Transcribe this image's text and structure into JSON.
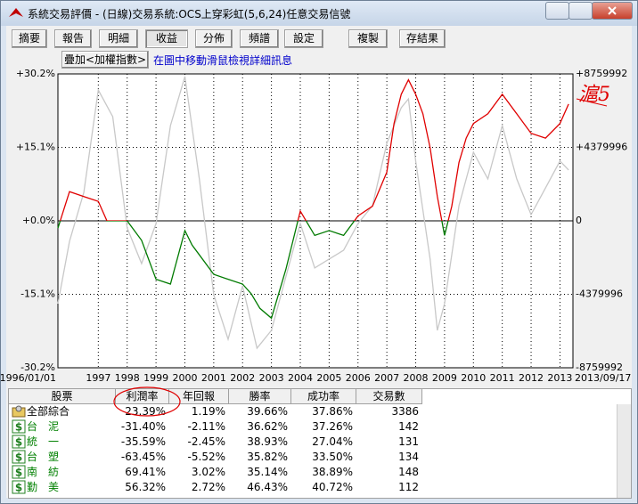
{
  "window": {
    "title": "系統交易評價 - (日線)交易系統:OCS上穿彩虹(5,6,24)任意交易信號"
  },
  "toolbar": {
    "buttons": [
      "摘要",
      "報告",
      "明細",
      "收益",
      "分佈",
      "頻譜",
      "設定",
      "複製",
      "存結果"
    ],
    "overlay_button": "疊加<加權指數>",
    "hint": "在圖中移動滑鼠檢視詳細訊息"
  },
  "chart_data": {
    "type": "line",
    "annotation": "滬5",
    "x_start_label": "1996/01/01",
    "x_end_label": "2013/09/17",
    "xlim": [
      1995.6,
      2013.45
    ],
    "xticks": [
      1997,
      1998,
      1999,
      2000,
      2001,
      2002,
      2003,
      2004,
      2005,
      2006,
      2007,
      2008,
      2009,
      2010,
      2011,
      2012,
      2013
    ],
    "ylim": [
      -30.2,
      30.2
    ],
    "yticks": [
      {
        "value": 30.2,
        "label": "+30.2%"
      },
      {
        "value": 15.1,
        "label": "+15.1%"
      },
      {
        "value": 0,
        "label": "+0.0%"
      },
      {
        "value": -15.1,
        "label": "-15.1%"
      },
      {
        "value": -30.2,
        "label": "-30.2%"
      }
    ],
    "y2lim": [
      -8759992,
      8759992
    ],
    "y2ticks": [
      {
        "value": 8759992,
        "label": "+8759992"
      },
      {
        "value": 4379996,
        "label": "+4379996"
      },
      0,
      -4379996,
      -8759992
    ],
    "grid": true,
    "series": [
      {
        "axis": "y2",
        "color": "#c8c8c8",
        "x": [
          1995.6,
          1996,
          1996.5,
          1997,
          1997.5,
          1998,
          1998.5,
          1999,
          1999.5,
          2000,
          2000.5,
          2001,
          2001.5,
          2002,
          2002.5,
          2003,
          2003.5,
          2004,
          2004.5,
          2005,
          2005.5,
          2006,
          2006.5,
          2007,
          2007.5,
          2007.75,
          2008,
          2008.5,
          2008.75,
          2009,
          2009.5,
          2010,
          2010.5,
          2011,
          2011.5,
          2012,
          2012.5,
          2013,
          2013.3
        ],
        "values": [
          -4940000,
          -1220000,
          1700000,
          7800000,
          6210000,
          -420000,
          -2550000,
          -160000,
          5680000,
          8600000,
          2500000,
          -4410000,
          -7060000,
          -3880000,
          -7590000,
          -6530000,
          -3340000,
          -160000,
          -2810000,
          -2280000,
          -1750000,
          -160000,
          900000,
          4620000,
          6740000,
          7270000,
          3560000,
          -2280000,
          -6530000,
          -4940000,
          900000,
          4090000,
          2500000,
          5680000,
          2500000,
          370000,
          1960000,
          3560000,
          3030000
        ]
      },
      {
        "axis": "y",
        "color_above": "#e00000",
        "color_below": "#007a00",
        "x": [
          1995.6,
          1996,
          1996.5,
          1997,
          1997.3,
          1998,
          1998.5,
          1999,
          1999.5,
          2000,
          2000.25,
          2000.5,
          2001,
          2001.5,
          2002,
          2002.3,
          2002.6,
          2003,
          2003.5,
          2004,
          2004.5,
          2005,
          2005.5,
          2006,
          2006.5,
          2007,
          2007.25,
          2007.5,
          2007.75,
          2008,
          2008.25,
          2008.5,
          2008.75,
          2009,
          2009.25,
          2009.5,
          2009.75,
          2010,
          2010.5,
          2011,
          2011.5,
          2012,
          2012.5,
          2013,
          2013.3
        ],
        "values": [
          -1.5,
          6,
          5,
          4,
          0,
          0,
          -4,
          -12,
          -13,
          -2,
          -5,
          -7,
          -11,
          -12,
          -13,
          -15,
          -18,
          -20,
          -10,
          2,
          -3,
          -2,
          -3,
          1,
          3,
          10,
          20,
          26,
          29,
          26,
          22,
          15,
          5,
          -3,
          3,
          12,
          17,
          20,
          22,
          26,
          22,
          18,
          17,
          20,
          24
        ]
      }
    ]
  },
  "table": {
    "columns": [
      "股票",
      "利潤率",
      "年回報",
      "勝率",
      "成功率",
      "交易數"
    ],
    "rows": [
      [
        "全部綜合",
        "23.39%",
        "1.19%",
        "39.66%",
        "37.86%",
        "3386"
      ],
      [
        "台　泥",
        "-31.40%",
        "-2.11%",
        "36.62%",
        "37.26%",
        "142"
      ],
      [
        "統　一",
        "-35.59%",
        "-2.45%",
        "38.93%",
        "27.04%",
        "131"
      ],
      [
        "台　塑",
        "-63.45%",
        "-5.52%",
        "35.82%",
        "33.50%",
        "134"
      ],
      [
        "南　紡",
        "69.41%",
        "3.02%",
        "35.14%",
        "38.89%",
        "148"
      ],
      [
        "勤　美",
        "56.32%",
        "2.72%",
        "46.43%",
        "40.72%",
        "112"
      ]
    ]
  }
}
